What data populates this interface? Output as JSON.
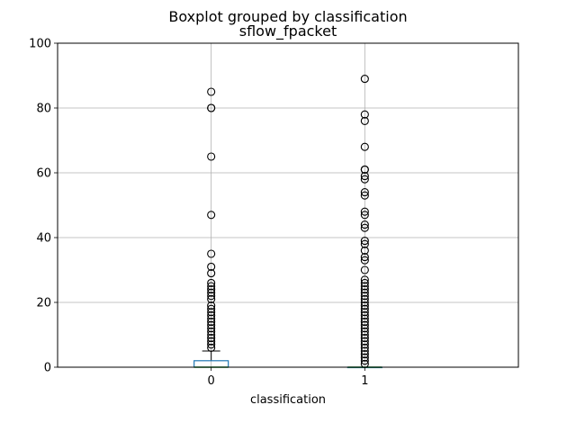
{
  "chart_data": {
    "type": "boxplot",
    "suptitle": "Boxplot grouped by classification",
    "title": "sflow_fpacket",
    "xlabel": "classification",
    "ylabel": "",
    "ylim": [
      0,
      100
    ],
    "yticks": [
      0,
      20,
      40,
      60,
      80,
      100
    ],
    "grid": true,
    "categories": [
      "0",
      "1"
    ],
    "boxes": [
      {
        "name": "0",
        "q1": 0,
        "median": 0,
        "q3": 2,
        "whisker_low": 0,
        "whisker_high": 5,
        "outliers": [
          6,
          7,
          8,
          9,
          10,
          11,
          12,
          13,
          14,
          15,
          16,
          17,
          18,
          19,
          21,
          22,
          23,
          24,
          25,
          26,
          29,
          31,
          35,
          47,
          65,
          80,
          80,
          85
        ]
      },
      {
        "name": "1",
        "q1": 0,
        "median": 0,
        "q3": 0,
        "whisker_low": 0,
        "whisker_high": 0,
        "outliers": [
          1,
          2,
          3,
          4,
          5,
          6,
          7,
          8,
          9,
          10,
          11,
          12,
          13,
          14,
          15,
          16,
          17,
          18,
          19,
          20,
          21,
          22,
          23,
          24,
          25,
          26,
          27,
          30,
          33,
          34,
          36,
          38,
          39,
          43,
          44,
          47,
          48,
          53,
          54,
          58,
          59,
          61,
          61,
          68,
          76,
          78,
          89
        ]
      }
    ],
    "colors": {
      "box": "#1f77b4",
      "median": "#2ca02c",
      "grid": "#b0b0b0",
      "axes": "#000000"
    }
  }
}
